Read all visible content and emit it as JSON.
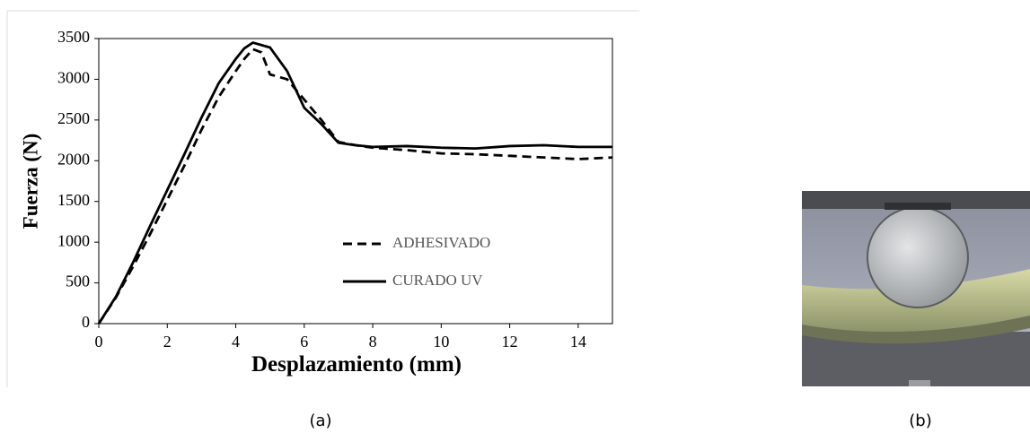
{
  "chart_data": {
    "type": "line",
    "xlabel": "Desplazamiento (mm)",
    "ylabel": "Fuerza (N)",
    "x": [
      0,
      0.5,
      1,
      1.5,
      2,
      2.5,
      3,
      3.5,
      4,
      4.25,
      4.5,
      4.75,
      5,
      5.5,
      6,
      6.5,
      7,
      7.5,
      8,
      9,
      10,
      11,
      12,
      13,
      14,
      15
    ],
    "series": [
      {
        "name": "ADHESIVADO",
        "color": "#000000",
        "linestyle": "dashed",
        "values": [
          0,
          320,
          700,
          1100,
          1520,
          1940,
          2380,
          2780,
          3100,
          3250,
          3370,
          3330,
          3060,
          3000,
          2750,
          2500,
          2230,
          2190,
          2160,
          2130,
          2090,
          2080,
          2060,
          2040,
          2020,
          2040
        ]
      },
      {
        "name": "CURADO UV",
        "color": "#000000",
        "linestyle": "solid",
        "values": [
          0,
          330,
          750,
          1200,
          1640,
          2080,
          2530,
          2950,
          3250,
          3380,
          3450,
          3420,
          3390,
          3100,
          2650,
          2450,
          2220,
          2190,
          2170,
          2180,
          2160,
          2150,
          2180,
          2190,
          2170,
          2170
        ]
      }
    ],
    "xlim": [
      0,
      15
    ],
    "xticks": [
      0,
      2,
      4,
      6,
      8,
      10,
      12,
      14
    ],
    "ylim": [
      0,
      3500
    ],
    "yticks": [
      0,
      500,
      1000,
      1500,
      2000,
      2500,
      3000,
      3500
    ],
    "grid": false
  },
  "captions": [
    "(a)",
    "(b)"
  ]
}
